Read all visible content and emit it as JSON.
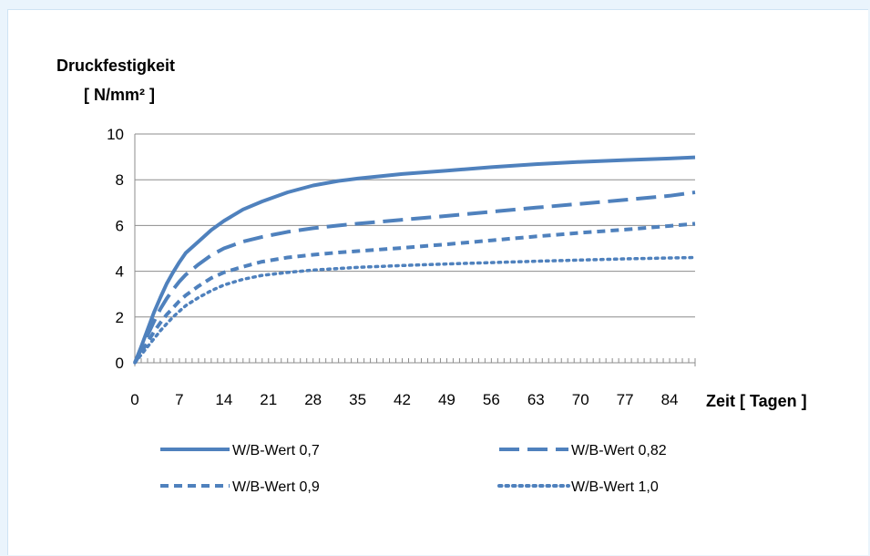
{
  "chart_data": {
    "type": "line",
    "ylabel_line1": "Druckfestigkeit",
    "ylabel_line2": "[ N/mm² ]",
    "xlabel": "Zeit [ Tagen ]",
    "xlim": [
      0,
      88
    ],
    "ylim": [
      0,
      10
    ],
    "xticks": [
      0,
      7,
      14,
      21,
      28,
      35,
      42,
      49,
      56,
      63,
      70,
      77,
      84
    ],
    "yticks": [
      0,
      2,
      4,
      6,
      8,
      10
    ],
    "grid": true,
    "legend_position": "bottom",
    "color": "#4f81bd",
    "x": [
      0,
      1,
      2,
      3,
      4,
      5,
      6,
      7,
      8,
      10,
      12,
      14,
      17,
      20,
      24,
      28,
      32,
      35,
      42,
      49,
      56,
      63,
      70,
      77,
      84,
      88
    ],
    "series": [
      {
        "name": "W/B-Wert 0,7",
        "dash": "solid",
        "values": [
          0,
          0.7,
          1.45,
          2.2,
          2.85,
          3.45,
          3.95,
          4.4,
          4.8,
          5.3,
          5.8,
          6.2,
          6.7,
          7.05,
          7.45,
          7.75,
          7.95,
          8.05,
          8.25,
          8.4,
          8.55,
          8.68,
          8.78,
          8.86,
          8.93,
          8.98
        ]
      },
      {
        "name": "W/B-Wert 0,82",
        "dash": "long",
        "values": [
          0,
          0.6,
          1.2,
          1.8,
          2.35,
          2.8,
          3.2,
          3.55,
          3.85,
          4.3,
          4.7,
          5.0,
          5.3,
          5.5,
          5.72,
          5.88,
          6.0,
          6.08,
          6.25,
          6.42,
          6.6,
          6.78,
          6.95,
          7.12,
          7.3,
          7.45
        ]
      },
      {
        "name": "W/B-Wert 0,9",
        "dash": "short",
        "values": [
          0,
          0.45,
          0.9,
          1.35,
          1.75,
          2.1,
          2.4,
          2.7,
          2.95,
          3.35,
          3.7,
          3.95,
          4.2,
          4.42,
          4.6,
          4.72,
          4.82,
          4.88,
          5.02,
          5.18,
          5.35,
          5.52,
          5.68,
          5.82,
          5.98,
          6.08
        ]
      },
      {
        "name": "W/B-Wert 1,0",
        "dash": "dot",
        "values": [
          0,
          0.35,
          0.7,
          1.05,
          1.4,
          1.7,
          2.0,
          2.25,
          2.5,
          2.85,
          3.15,
          3.4,
          3.65,
          3.82,
          3.95,
          4.05,
          4.12,
          4.17,
          4.25,
          4.32,
          4.38,
          4.44,
          4.49,
          4.54,
          4.58,
          4.6
        ]
      }
    ]
  }
}
